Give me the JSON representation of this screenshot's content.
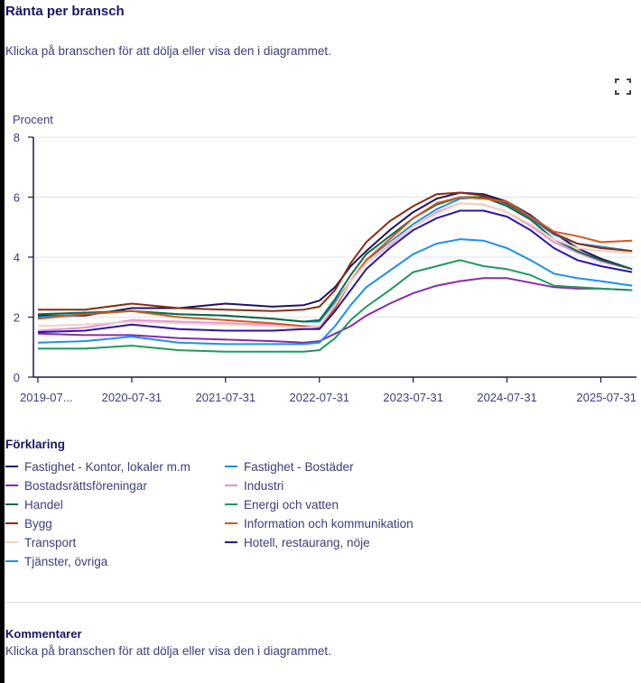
{
  "header": {
    "title": "Ränta per bransch",
    "subtitle": "Klicka på branschen för att dölja eller visa den i diagrammet.",
    "fullscreen_icon": "fullscreen-icon"
  },
  "legend": {
    "title": "Förklaring"
  },
  "comments": {
    "title": "Kommentarer",
    "text": "Klicka på branschen för att dölja eller visa den i diagrammet."
  },
  "chart_data": {
    "type": "line",
    "title": "Ränta per bransch",
    "ylabel": "Procent",
    "xlabel": "",
    "ylim": [
      0,
      8
    ],
    "yticks": [
      "0",
      "2",
      "4",
      "6",
      "8"
    ],
    "xticks": [
      "2019-07...",
      "2020-07-31",
      "2021-07-31",
      "2022-07-31",
      "2023-07-31",
      "2024-07-31",
      "2025-07-31"
    ],
    "grid": true,
    "legend_position": "bottom",
    "x": [
      "2019-07",
      "2020-01",
      "2020-07",
      "2021-01",
      "2021-07",
      "2022-01",
      "2022-05",
      "2022-07",
      "2022-09",
      "2022-11",
      "2023-01",
      "2023-04",
      "2023-07",
      "2023-10",
      "2024-01",
      "2024-04",
      "2024-07",
      "2024-10",
      "2025-01",
      "2025-04",
      "2025-07",
      "2025-11"
    ],
    "series": [
      {
        "name": "Fastighet - Kontor, lokaler m.m",
        "color": "#1b1464",
        "values": [
          2.05,
          2.05,
          2.3,
          2.3,
          2.45,
          2.35,
          2.4,
          2.55,
          3.0,
          3.7,
          4.2,
          4.9,
          5.5,
          5.95,
          6.15,
          6.1,
          5.85,
          5.4,
          4.8,
          4.3,
          3.95,
          3.6
        ]
      },
      {
        "name": "Fastighet - Bostäder",
        "color": "#1e90d6",
        "values": [
          2.0,
          2.1,
          2.2,
          2.1,
          2.05,
          1.95,
          1.85,
          1.85,
          2.5,
          3.2,
          3.9,
          4.5,
          5.1,
          5.6,
          5.95,
          6.0,
          5.75,
          5.3,
          4.75,
          4.45,
          4.35,
          4.2
        ]
      },
      {
        "name": "Bostadsrättsföreningar",
        "color": "#8a2aa8",
        "values": [
          1.45,
          1.4,
          1.4,
          1.3,
          1.25,
          1.2,
          1.15,
          1.2,
          1.45,
          1.7,
          2.05,
          2.45,
          2.8,
          3.05,
          3.2,
          3.3,
          3.3,
          3.15,
          3.0,
          2.95,
          2.95,
          2.9
        ]
      },
      {
        "name": "Industri",
        "color": "#e58ee3",
        "values": [
          1.55,
          1.65,
          1.9,
          1.85,
          1.8,
          1.75,
          1.7,
          1.7,
          2.4,
          3.2,
          3.8,
          4.4,
          5.0,
          5.5,
          5.8,
          5.75,
          5.5,
          5.05,
          4.5,
          4.15,
          3.85,
          3.6
        ]
      },
      {
        "name": "Handel",
        "color": "#0f6a45",
        "values": [
          2.1,
          2.15,
          2.2,
          2.1,
          2.05,
          1.95,
          1.85,
          1.9,
          2.6,
          3.4,
          4.1,
          4.7,
          5.3,
          5.75,
          6.0,
          6.0,
          5.7,
          5.25,
          4.6,
          4.2,
          3.9,
          3.6
        ]
      },
      {
        "name": "Energi och vatten",
        "color": "#1f9a5e",
        "values": [
          0.95,
          0.95,
          1.05,
          0.9,
          0.85,
          0.85,
          0.85,
          0.9,
          1.3,
          1.9,
          2.35,
          2.9,
          3.5,
          3.7,
          3.9,
          3.7,
          3.6,
          3.4,
          3.05,
          3.0,
          2.95,
          2.9
        ]
      },
      {
        "name": "Bygg",
        "color": "#8b2d12",
        "values": [
          2.25,
          2.25,
          2.45,
          2.3,
          2.25,
          2.2,
          2.25,
          2.35,
          2.9,
          3.8,
          4.5,
          5.2,
          5.7,
          6.1,
          6.15,
          6.05,
          5.8,
          5.35,
          4.8,
          4.45,
          4.3,
          4.2
        ]
      },
      {
        "name": "Information och kommunikation",
        "color": "#d6571c",
        "values": [
          1.95,
          2.1,
          2.2,
          2.0,
          1.9,
          1.8,
          1.7,
          1.65,
          2.3,
          3.2,
          3.9,
          4.6,
          5.3,
          5.8,
          6.0,
          5.95,
          5.85,
          5.35,
          4.85,
          4.7,
          4.5,
          4.55
        ]
      },
      {
        "name": "Transport",
        "color": "#f5cfc0",
        "values": [
          1.7,
          1.75,
          1.85,
          1.8,
          1.75,
          1.7,
          1.65,
          1.7,
          2.4,
          3.2,
          3.8,
          4.45,
          5.0,
          5.45,
          5.8,
          5.75,
          5.5,
          5.1,
          4.6,
          4.3,
          4.2,
          4.15
        ]
      },
      {
        "name": "Hotell, restaurang, nöje",
        "color": "#2a14a8",
        "values": [
          1.5,
          1.55,
          1.75,
          1.6,
          1.55,
          1.55,
          1.6,
          1.6,
          2.2,
          2.9,
          3.6,
          4.3,
          4.9,
          5.3,
          5.55,
          5.55,
          5.35,
          4.9,
          4.3,
          3.9,
          3.7,
          3.5
        ]
      },
      {
        "name": "Tjänster, övriga",
        "color": "#1e90f0",
        "values": [
          1.15,
          1.2,
          1.35,
          1.15,
          1.1,
          1.1,
          1.1,
          1.15,
          1.7,
          2.4,
          3.0,
          3.55,
          4.1,
          4.45,
          4.6,
          4.55,
          4.3,
          3.9,
          3.45,
          3.3,
          3.2,
          3.05
        ]
      }
    ]
  }
}
